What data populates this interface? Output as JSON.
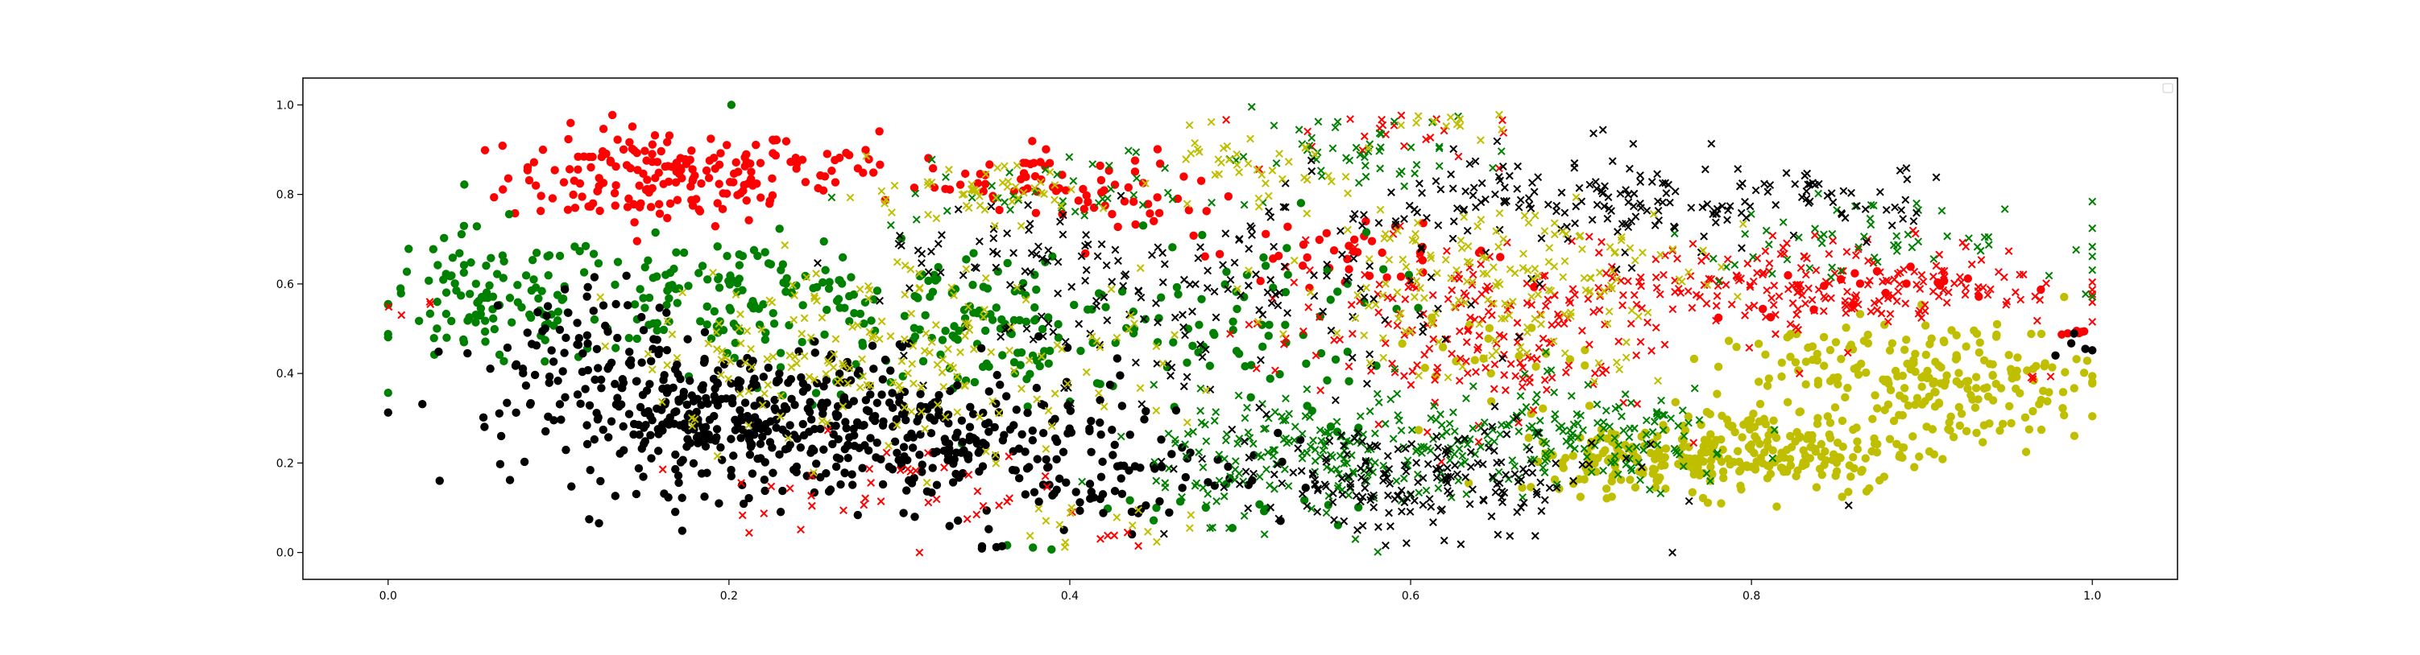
{
  "chart_data": {
    "type": "scatter",
    "title": "",
    "xlabel": "",
    "ylabel": "",
    "xlim": [
      -0.05,
      1.05
    ],
    "ylim": [
      -0.06,
      1.06
    ],
    "xticks": [
      0.0,
      0.2,
      0.4,
      0.6,
      0.8,
      1.0
    ],
    "yticks": [
      0.0,
      0.2,
      0.4,
      0.6,
      0.8,
      1.0
    ],
    "xtick_labels": [
      "0.0",
      "0.2",
      "0.4",
      "0.6",
      "0.8",
      "1.0"
    ],
    "ytick_labels": [
      "0.0",
      "0.2",
      "0.4",
      "0.6",
      "0.8",
      "1.0"
    ],
    "grid": false,
    "legend": {
      "placement": "top-right",
      "entries": []
    },
    "colors": {
      "red": "#ff0000",
      "green": "#008000",
      "black": "#000000",
      "olive": "#bfbf00"
    },
    "series": [
      {
        "marker": "circle",
        "color": "red",
        "clusters": [
          {
            "center": [
              0.16,
              0.84
            ],
            "spread": [
              0.045,
              0.055
            ],
            "count": 170
          },
          {
            "center": [
              0.26,
              0.86
            ],
            "spread": [
              0.035,
              0.035
            ],
            "count": 30
          },
          {
            "center": [
              0.38,
              0.84
            ],
            "spread": [
              0.035,
              0.035
            ],
            "count": 50
          },
          {
            "center": [
              0.44,
              0.77
            ],
            "spread": [
              0.03,
              0.03
            ],
            "count": 25
          },
          {
            "center": [
              0.56,
              0.67
            ],
            "spread": [
              0.05,
              0.03
            ],
            "count": 40
          },
          {
            "center": [
              0.88,
              0.58
            ],
            "spread": [
              0.05,
              0.03
            ],
            "count": 20
          },
          {
            "center": [
              0.99,
              0.49
            ],
            "spread": [
              0.005,
              0.005
            ],
            "count": 6
          }
        ]
      },
      {
        "marker": "circle",
        "color": "green",
        "clusters": [
          {
            "center": [
              0.06,
              0.56
            ],
            "spread": [
              0.035,
              0.08
            ],
            "count": 110
          },
          {
            "center": [
              0.2,
              0.58
            ],
            "spread": [
              0.05,
              0.06
            ],
            "count": 130
          },
          {
            "center": [
              0.35,
              0.5
            ],
            "spread": [
              0.07,
              0.09
            ],
            "count": 160
          },
          {
            "center": [
              0.51,
              0.5
            ],
            "spread": [
              0.04,
              0.12
            ],
            "count": 60
          },
          {
            "center": [
              0.5,
              0.1
            ],
            "spread": [
              0.04,
              0.03
            ],
            "count": 15
          },
          {
            "center": [
              0.2,
              1.0
            ],
            "spread": [
              0.002,
              0.002
            ],
            "count": 1
          },
          {
            "center": [
              0.37,
              0.01
            ],
            "spread": [
              0.01,
              0.005
            ],
            "count": 3
          }
        ]
      },
      {
        "marker": "circle",
        "color": "black",
        "clusters": [
          {
            "center": [
              0.2,
              0.3
            ],
            "spread": [
              0.06,
              0.08
            ],
            "count": 380
          },
          {
            "center": [
              0.33,
              0.25
            ],
            "spread": [
              0.06,
              0.08
            ],
            "count": 220
          },
          {
            "center": [
              0.43,
              0.18
            ],
            "spread": [
              0.05,
              0.06
            ],
            "count": 60
          },
          {
            "center": [
              0.1,
              0.45
            ],
            "spread": [
              0.03,
              0.08
            ],
            "count": 60
          },
          {
            "center": [
              0.35,
              0.01
            ],
            "spread": [
              0.01,
              0.005
            ],
            "count": 4
          },
          {
            "center": [
              0.99,
              0.46
            ],
            "spread": [
              0.006,
              0.02
            ],
            "count": 5
          }
        ]
      },
      {
        "marker": "circle",
        "color": "olive",
        "clusters": [
          {
            "center": [
              0.8,
              0.23
            ],
            "spread": [
              0.05,
              0.05
            ],
            "count": 230
          },
          {
            "center": [
              0.74,
              0.2
            ],
            "spread": [
              0.04,
              0.035
            ],
            "count": 90
          },
          {
            "center": [
              0.92,
              0.38
            ],
            "spread": [
              0.04,
              0.07
            ],
            "count": 170
          },
          {
            "center": [
              0.84,
              0.42
            ],
            "spread": [
              0.03,
              0.04
            ],
            "count": 50
          },
          {
            "center": [
              0.64,
              0.45
            ],
            "spread": [
              0.03,
              0.05
            ],
            "count": 20
          }
        ]
      },
      {
        "marker": "x",
        "color": "red",
        "clusters": [
          {
            "center": [
              0.63,
              0.5
            ],
            "spread": [
              0.06,
              0.1
            ],
            "count": 200
          },
          {
            "center": [
              0.85,
              0.6
            ],
            "spread": [
              0.07,
              0.05
            ],
            "count": 220
          },
          {
            "center": [
              0.28,
              0.15
            ],
            "spread": [
              0.05,
              0.05
            ],
            "count": 40
          },
          {
            "center": [
              0.58,
              0.94
            ],
            "spread": [
              0.03,
              0.03
            ],
            "count": 20
          },
          {
            "center": [
              0.43,
              0.03
            ],
            "spread": [
              0.01,
              0.01
            ],
            "count": 5
          },
          {
            "center": [
              0.97,
              0.39
            ],
            "spread": [
              0.005,
              0.005
            ],
            "count": 4
          },
          {
            "center": [
              0.01,
              0.55
            ],
            "spread": [
              0.01,
              0.01
            ],
            "count": 4
          }
        ]
      },
      {
        "marker": "x",
        "color": "green",
        "clusters": [
          {
            "center": [
              0.55,
              0.22
            ],
            "spread": [
              0.05,
              0.07
            ],
            "count": 210
          },
          {
            "center": [
              0.7,
              0.25
            ],
            "spread": [
              0.05,
              0.06
            ],
            "count": 150
          },
          {
            "center": [
              0.56,
              0.91
            ],
            "spread": [
              0.05,
              0.04
            ],
            "count": 50
          },
          {
            "center": [
              0.87,
              0.7
            ],
            "spread": [
              0.06,
              0.04
            ],
            "count": 60
          },
          {
            "center": [
              0.4,
              0.8
            ],
            "spread": [
              0.05,
              0.04
            ],
            "count": 40
          },
          {
            "center": [
              1.0,
              0.57
            ],
            "spread": [
              0.005,
              0.005
            ],
            "count": 2
          }
        ]
      },
      {
        "marker": "x",
        "color": "black",
        "clusters": [
          {
            "center": [
              0.6,
              0.16
            ],
            "spread": [
              0.06,
              0.06
            ],
            "count": 190
          },
          {
            "center": [
              0.7,
              0.78
            ],
            "spread": [
              0.07,
              0.06
            ],
            "count": 160
          },
          {
            "center": [
              0.47,
              0.55
            ],
            "spread": [
              0.08,
              0.1
            ],
            "count": 150
          },
          {
            "center": [
              0.85,
              0.8
            ],
            "spread": [
              0.04,
              0.03
            ],
            "count": 40
          },
          {
            "center": [
              0.38,
              0.68
            ],
            "spread": [
              0.05,
              0.05
            ],
            "count": 40
          },
          {
            "center": [
              0.66,
              0.04
            ],
            "spread": [
              0.01,
              0.005
            ],
            "count": 3
          }
        ]
      },
      {
        "marker": "x",
        "color": "olive",
        "clusters": [
          {
            "center": [
              0.3,
              0.45
            ],
            "spread": [
              0.08,
              0.1
            ],
            "count": 200
          },
          {
            "center": [
              0.65,
              0.6
            ],
            "spread": [
              0.06,
              0.1
            ],
            "count": 180
          },
          {
            "center": [
              0.34,
              0.8
            ],
            "spread": [
              0.04,
              0.03
            ],
            "count": 50
          },
          {
            "center": [
              0.5,
              0.85
            ],
            "spread": [
              0.03,
              0.04
            ],
            "count": 40
          },
          {
            "center": [
              0.41,
              0.06
            ],
            "spread": [
              0.03,
              0.02
            ],
            "count": 15
          },
          {
            "center": [
              0.62,
              0.96
            ],
            "spread": [
              0.02,
              0.015
            ],
            "count": 12
          }
        ]
      }
    ]
  }
}
